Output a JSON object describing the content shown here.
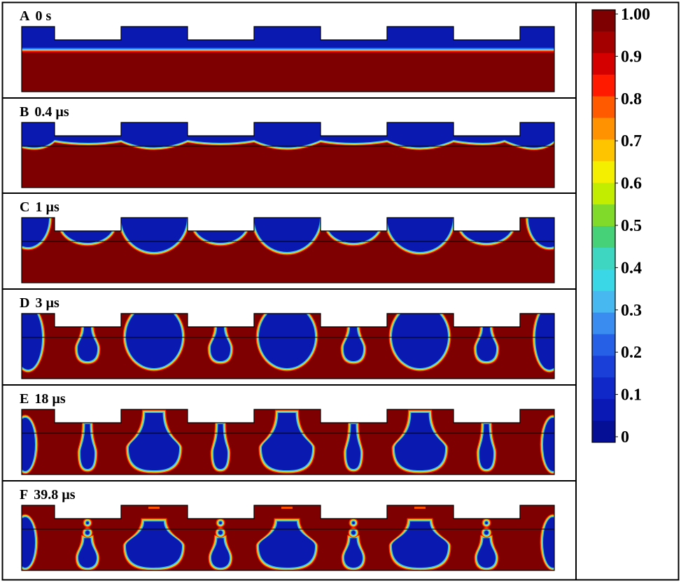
{
  "panels": [
    {
      "letter": "A",
      "time": "0 s"
    },
    {
      "letter": "B",
      "time": "0.4 µs"
    },
    {
      "letter": "C",
      "time": "1 µs"
    },
    {
      "letter": "D",
      "time": "3 µs"
    },
    {
      "letter": "E",
      "time": "18 µs"
    },
    {
      "letter": "F",
      "time": "39.8 µs"
    }
  ],
  "colorbar": {
    "labels": [
      "1.00",
      "0.9",
      "0.8",
      "0.7",
      "0.6",
      "0.5",
      "0.4",
      "0.3",
      "0.2",
      "0.1",
      "0"
    ],
    "colors_top_to_bottom": [
      "#7f0000",
      "#a50000",
      "#d40000",
      "#ff1a00",
      "#ff5a00",
      "#ff9200",
      "#ffc400",
      "#f4ee00",
      "#c2ec00",
      "#7fda2a",
      "#46d078",
      "#3ed6c0",
      "#3ad8e6",
      "#48b8f0",
      "#3a8cf0",
      "#2660e6",
      "#1a3ed8",
      "#1028c8",
      "#0a18b4",
      "#050f96"
    ]
  },
  "colors": {
    "dark_red": "#7f0000",
    "dark_blue": "#0a1ab0",
    "outline": "#000000"
  }
}
